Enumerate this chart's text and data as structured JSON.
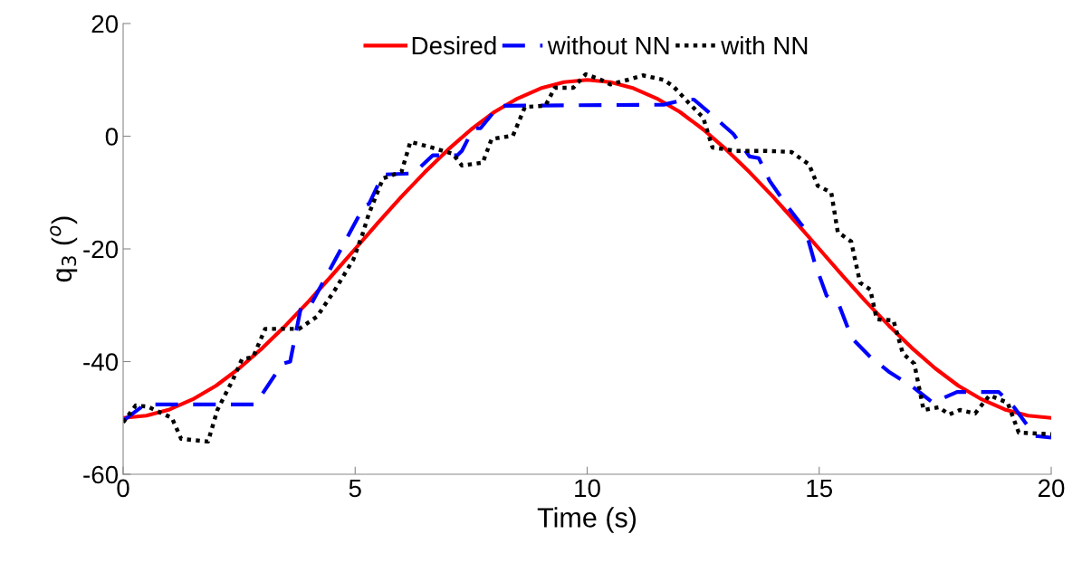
{
  "chart_data": {
    "type": "line",
    "xlabel": "Time (s)",
    "ylabel": "q$_{3}$ ($^{o}$)",
    "xlim": [
      0,
      20
    ],
    "ylim": [
      -60,
      20
    ],
    "xticks": [
      0,
      5,
      10,
      15,
      20
    ],
    "yticks": [
      -60,
      -40,
      -20,
      0,
      20
    ],
    "grid": false,
    "legend": "top",
    "marker": "none",
    "series": [
      {
        "name": "Desired",
        "color": "#ff0000",
        "line_style": "solid",
        "x": [
          0,
          0.5,
          1,
          1.5,
          2,
          2.5,
          3,
          3.5,
          4,
          4.5,
          5,
          5.5,
          6,
          6.5,
          7,
          7.5,
          8,
          8.5,
          9,
          9.5,
          10,
          10.5,
          11,
          11.5,
          12,
          12.5,
          13,
          13.5,
          14,
          14.5,
          15,
          15.5,
          16,
          16.5,
          17,
          17.5,
          18,
          18.5,
          19,
          19.5,
          20
        ],
        "values": [
          -50,
          -49.6,
          -48.5,
          -46.7,
          -44.3,
          -41.2,
          -37.6,
          -33.6,
          -29.3,
          -24.7,
          -20,
          -15.3,
          -10.7,
          -6.4,
          -2.4,
          1.2,
          4.3,
          6.7,
          8.5,
          9.6,
          10,
          9.6,
          8.5,
          6.7,
          4.3,
          1.2,
          -2.4,
          -6.4,
          -10.7,
          -15.3,
          -20,
          -24.7,
          -29.3,
          -33.6,
          -37.6,
          -41.2,
          -44.3,
          -46.7,
          -48.5,
          -49.6,
          -50
        ]
      },
      {
        "name": "without NN",
        "color": "#0000ff",
        "line_style": "dashed",
        "x": [
          0,
          0.47,
          2.85,
          3.43,
          3.6,
          3.84,
          4.04,
          5.2,
          5.3,
          5.6,
          6.26,
          6.67,
          7.2,
          7.3,
          7.55,
          7.7,
          8.1,
          11.65,
          12.1,
          12.3,
          12.6,
          13.15,
          13.5,
          13.7,
          13.93,
          14.3,
          14.6,
          14.7,
          14.9,
          15.16,
          15.43,
          15.7,
          16.08,
          16.5,
          17.0,
          17.45,
          17.97,
          18.87,
          19.2,
          19.65,
          20
        ],
        "values": [
          -50.5,
          -47.6,
          -47.6,
          -40.4,
          -40,
          -30,
          -30,
          -12.3,
          -12,
          -6.8,
          -6.6,
          -3.4,
          -3.4,
          -2.6,
          1.4,
          1.4,
          5.4,
          5.6,
          6.5,
          6.5,
          4.4,
          0.4,
          -3.6,
          -3.9,
          -7.9,
          -12.3,
          -15.5,
          -16.5,
          -22.4,
          -28.3,
          -30,
          -35.8,
          -39,
          -41.8,
          -44.4,
          -47.3,
          -45.4,
          -45.4,
          -48.1,
          -53.2,
          -53.5
        ]
      },
      {
        "name": "with NN",
        "color": "#000000",
        "line_style": "dotted",
        "x": [
          0,
          0.27,
          0.53,
          1.05,
          1.25,
          1.83,
          2.03,
          2.36,
          2.56,
          2.8,
          3.06,
          3.79,
          4.18,
          4.57,
          4.96,
          5.15,
          5.29,
          5.6,
          6.0,
          6.19,
          6.65,
          7.1,
          7.3,
          7.75,
          7.94,
          8.4,
          8.66,
          9.1,
          9.3,
          9.7,
          9.97,
          10.3,
          10.5,
          10.87,
          11.2,
          11.65,
          11.85,
          12.18,
          12.5,
          12.7,
          13.2,
          13.87,
          14.4,
          14.78,
          14.97,
          15.26,
          15.4,
          15.69,
          15.88,
          16.1,
          16.24,
          16.6,
          16.8,
          17.05,
          17.25,
          17.58,
          17.8,
          18.03,
          18.36,
          18.67,
          19.06,
          19.3,
          20
        ],
        "values": [
          -50.8,
          -47.8,
          -48,
          -50,
          -53.7,
          -54.2,
          -48.6,
          -43.3,
          -39.6,
          -39.2,
          -34.2,
          -34.2,
          -32,
          -27.2,
          -21.9,
          -17.6,
          -13.9,
          -7.5,
          -6.3,
          -1,
          -2,
          -3.1,
          -5.2,
          -4.7,
          -0.5,
          0.1,
          5.2,
          5.4,
          8.6,
          8.6,
          11,
          10,
          9.2,
          10,
          10.8,
          10,
          8.9,
          6,
          3.3,
          -2,
          -2.6,
          -2.6,
          -2.8,
          -5,
          -8.8,
          -10,
          -17,
          -18.7,
          -26,
          -27.2,
          -32.5,
          -32.7,
          -38.5,
          -40.4,
          -48.6,
          -48.1,
          -49.4,
          -48.6,
          -49.2,
          -46,
          -47.3,
          -52.6,
          -52.9
        ]
      }
    ]
  }
}
